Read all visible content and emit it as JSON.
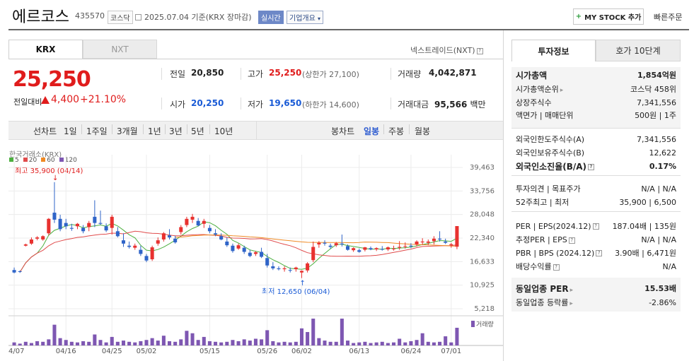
{
  "header": {
    "name": "에르코스",
    "code": "435570",
    "market_tag": "코스닥",
    "date_text": "2025.07.04 기준(KRX 장마감)",
    "live_tag": "실시간",
    "company_tag": "기업개요",
    "mystock_label": "MY STOCK 추가",
    "quick_order": "빠른주문"
  },
  "tabs": {
    "krx": "KRX",
    "nxt": "NXT",
    "nxt_link": "넥스트레이드(NXT)"
  },
  "quote": {
    "price": "25,250",
    "change_label": "전일대비",
    "change": "4,400",
    "change_pct": "+21.10%",
    "prev_close_label": "전일",
    "prev_close": "20,850",
    "high_label": "고가",
    "high": "25,250",
    "upper_limit": "(상한가 27,100)",
    "volume_label": "거래량",
    "volume": "4,042,871",
    "open_label": "시가",
    "open": "20,250",
    "low_label": "저가",
    "low": "19,650",
    "lower_limit": "(하한가 14,600)",
    "value_label": "거래대금",
    "value": "95,566",
    "value_unit": "백만"
  },
  "periods": {
    "line_chart": "선차트",
    "items": [
      "1일",
      "1주일",
      "3개월",
      "1년",
      "3년",
      "5년",
      "10년"
    ],
    "candle_chart": "봉차트",
    "candle_items": [
      "일봉",
      "주봉",
      "월봉"
    ],
    "selected": "일봉"
  },
  "chart": {
    "exchange": "한국거래소(KRX)",
    "ma_legend": [
      {
        "label": "5",
        "color": "#4caf3f"
      },
      {
        "label": "20",
        "color": "#e04b4b"
      },
      {
        "label": "60",
        "color": "#f08a24"
      },
      {
        "label": "120",
        "color": "#7e57b2"
      }
    ],
    "high_note": "최고 35,900 (04/14)",
    "low_note": "최저 12,650 (06/04)",
    "volume_label": "거래량",
    "up_color": "#e8312f",
    "down_color": "#2f64c8"
  },
  "chart_data": {
    "type": "candlestick",
    "yticks": [
      "39,463",
      "33,756",
      "28,048",
      "22,340",
      "16,633",
      "10,925",
      "5,218"
    ],
    "ylim": [
      5218,
      39463
    ],
    "xticks": [
      "04/07",
      "04/16",
      "04/25",
      "05/02",
      "05/15",
      "05/26",
      "06/02",
      "06/13",
      "06/24",
      "07/01"
    ],
    "candles": [
      [
        14600,
        15200,
        13800,
        14000
      ],
      [
        14300,
        14500,
        13900,
        14200
      ],
      [
        20500,
        21000,
        20300,
        20800
      ],
      [
        21000,
        22500,
        20700,
        22000
      ],
      [
        22200,
        22800,
        21800,
        22500
      ],
      [
        22000,
        23000,
        21700,
        22800
      ],
      [
        23500,
        27200,
        23000,
        27000
      ],
      [
        28500,
        35900,
        26000,
        26800
      ],
      [
        27000,
        28000,
        24000,
        24500
      ],
      [
        26000,
        27000,
        24500,
        25200
      ],
      [
        24800,
        25800,
        24100,
        24600
      ],
      [
        25200,
        26000,
        24500,
        25800
      ],
      [
        24800,
        25500,
        23500,
        24000
      ],
      [
        25000,
        26500,
        24000,
        26000
      ],
      [
        27500,
        31500,
        25000,
        26000
      ],
      [
        26000,
        29000,
        25500,
        25800
      ],
      [
        25200,
        25900,
        23800,
        24200
      ],
      [
        24800,
        28000,
        23200,
        27500
      ],
      [
        24000,
        25000,
        22500,
        22800
      ],
      [
        21800,
        23500,
        20200,
        21000
      ],
      [
        20500,
        21500,
        19800,
        20200
      ],
      [
        20000,
        21000,
        19500,
        20500
      ],
      [
        19500,
        20500,
        18000,
        18500
      ],
      [
        18000,
        18500,
        16500,
        16900
      ],
      [
        17200,
        20500,
        16800,
        20100
      ],
      [
        21000,
        22500,
        20500,
        21800
      ],
      [
        22000,
        23800,
        21500,
        23500
      ],
      [
        23000,
        24500,
        22000,
        22500
      ],
      [
        22200,
        22900,
        21000,
        21300
      ],
      [
        23800,
        25500,
        23200,
        25000
      ],
      [
        25500,
        27500,
        25000,
        27000
      ],
      [
        26800,
        28200,
        26000,
        27500
      ],
      [
        26500,
        27200,
        25200,
        25400
      ],
      [
        25800,
        27000,
        24800,
        26500
      ],
      [
        24800,
        25500,
        23500,
        24000
      ],
      [
        23500,
        24500,
        22800,
        23200
      ],
      [
        22800,
        23500,
        21800,
        22000
      ],
      [
        21500,
        22500,
        20200,
        20600
      ],
      [
        20500,
        21000,
        18800,
        19200
      ],
      [
        19800,
        21000,
        19500,
        20600
      ],
      [
        20000,
        20500,
        18500,
        19000
      ],
      [
        18800,
        19500,
        17700,
        18000
      ],
      [
        18500,
        19200,
        18000,
        18900
      ],
      [
        19000,
        20000,
        17500,
        17800
      ],
      [
        17500,
        18500,
        15200,
        15700
      ],
      [
        15500,
        16500,
        14600,
        15000
      ],
      [
        15000,
        15500,
        14500,
        14800
      ],
      [
        14800,
        15500,
        14200,
        15000
      ],
      [
        14600,
        15200,
        14000,
        14500
      ],
      [
        14800,
        15400,
        14200,
        15200
      ],
      [
        14000,
        14500,
        12650,
        14400
      ],
      [
        14500,
        16500,
        14000,
        16200
      ],
      [
        17000,
        21500,
        16500,
        20200
      ],
      [
        20800,
        21600,
        20000,
        21200
      ],
      [
        21200,
        21800,
        20500,
        21000
      ],
      [
        20500,
        21000,
        19800,
        20200
      ],
      [
        20600,
        21400,
        20200,
        21100
      ],
      [
        21000,
        23200,
        20300,
        20800
      ],
      [
        20400,
        20800,
        19300,
        19500
      ],
      [
        19400,
        20100,
        19000,
        19900
      ],
      [
        19400,
        19800,
        18800,
        19000
      ],
      [
        19500,
        20200,
        19100,
        20100
      ],
      [
        19900,
        20300,
        19400,
        19600
      ],
      [
        19600,
        20100,
        19200,
        19900
      ],
      [
        19700,
        20400,
        19300,
        19600
      ],
      [
        19600,
        20300,
        19200,
        20100
      ],
      [
        19800,
        20500,
        19300,
        19800
      ],
      [
        20000,
        21600,
        19500,
        20200
      ],
      [
        20300,
        21300,
        19800,
        20400
      ],
      [
        20500,
        21100,
        19900,
        20300
      ],
      [
        20800,
        21800,
        20300,
        21500
      ],
      [
        21300,
        22300,
        20700,
        21500
      ],
      [
        21200,
        22000,
        20600,
        21500
      ],
      [
        21600,
        22800,
        20800,
        22200
      ],
      [
        22200,
        24000,
        21500,
        22000
      ],
      [
        21500,
        22200,
        20900,
        21200
      ],
      [
        20600,
        21200,
        20000,
        20850
      ],
      [
        20250,
        25250,
        19650,
        25250
      ]
    ],
    "volumes": [
      5,
      3,
      6,
      4,
      7,
      6,
      10,
      34,
      12,
      9,
      6,
      5,
      7,
      6,
      18,
      9,
      5,
      14,
      6,
      8,
      6,
      5,
      7,
      9,
      12,
      8,
      16,
      7,
      6,
      10,
      24,
      20,
      9,
      14,
      7,
      6,
      5,
      6,
      9,
      7,
      10,
      8,
      11,
      10,
      25,
      7,
      5,
      6,
      5,
      6,
      28,
      22,
      44,
      12,
      8,
      6,
      6,
      44,
      8,
      4,
      5,
      6,
      4,
      5,
      6,
      4,
      5,
      11,
      5,
      7,
      9,
      20,
      6,
      5,
      6,
      15,
      5,
      29
    ]
  },
  "info": {
    "tab_invest": "투자정보",
    "tab_hoga": "호가 10단계",
    "rows1": [
      {
        "k": "시가총액",
        "v": "1,854억원"
      },
      {
        "k": "시가총액순위",
        "v": "코스닥 458위"
      },
      {
        "k": "상장주식수",
        "v": "7,341,556"
      },
      {
        "k": "액면가 | 매매단위",
        "v": "500원 | 1주"
      }
    ],
    "rows2": [
      {
        "k": "외국인한도주식수(A)",
        "v": "7,341,556"
      },
      {
        "k": "외국인보유주식수(B)",
        "v": "12,622"
      },
      {
        "k": "외국인소진율(B/A)",
        "v": "0.17%"
      }
    ],
    "rows3": [
      {
        "k": "투자의견 | 목표주가",
        "v": "N/A | N/A"
      },
      {
        "k": "52주최고 | 최저",
        "v": "35,900 | 6,500"
      }
    ],
    "rows4": [
      {
        "k": "PER | EPS(2024.12)",
        "v": "187.04배 | 135원"
      },
      {
        "k": "추정PER | EPS",
        "v": "N/A | N/A"
      },
      {
        "k": "PBR | BPS (2024.12)",
        "v": "3.90배 | 6,471원"
      },
      {
        "k": "배당수익률",
        "v": "N/A"
      }
    ],
    "rows5": [
      {
        "k": "동일업종 PER",
        "v": "15.53배"
      },
      {
        "k": "동일업종 등락률",
        "v": "-2.86%"
      }
    ]
  }
}
